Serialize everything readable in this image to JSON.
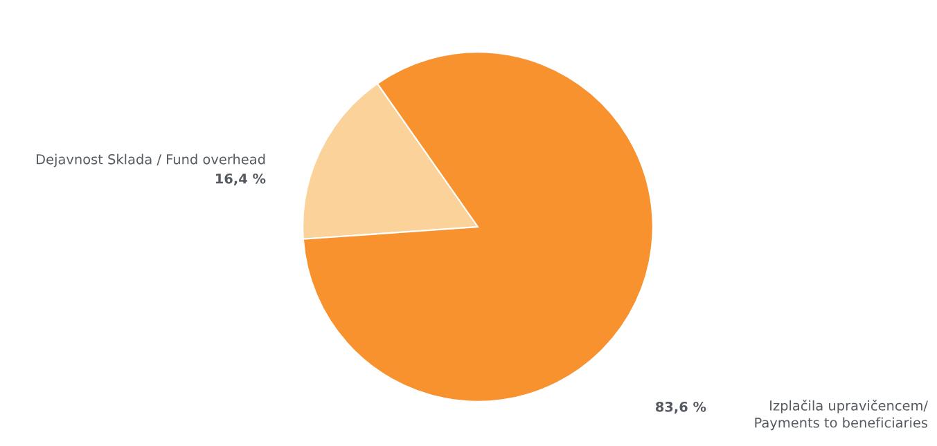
{
  "chart_data": {
    "type": "pie",
    "categories": [
      "Dejavnost Sklada / Fund overhead",
      "Izplačila upravičencem/\nPayments to beneficiaries"
    ],
    "values": [
      16.4,
      83.6
    ],
    "value_labels": [
      "16,4 %",
      "83,6 %"
    ],
    "colors": [
      "#fbd29a",
      "#f7922f"
    ],
    "legend": false
  }
}
